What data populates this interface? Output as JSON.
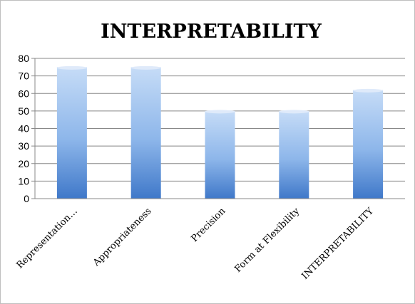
{
  "chart_data": {
    "type": "bar",
    "title": "INTERPRETABILITY",
    "xlabel": "",
    "ylabel": "",
    "categories": [
      "Representation…",
      "Appropriateness",
      "Precision",
      "Form at Flexibility",
      "INTERPRETABILITY"
    ],
    "values": [
      75,
      75,
      50,
      50,
      62
    ],
    "ylim": [
      0,
      80
    ],
    "yticks": [
      0,
      10,
      20,
      30,
      40,
      50,
      60,
      70,
      80
    ],
    "grid": true,
    "legend": "none",
    "colors": {
      "bar_top": "#c6dcf7",
      "bar_mid": "#8db6ea",
      "bar_bottom": "#3f78c9",
      "bar_cap": "#dfeafa",
      "grid": "#888888"
    }
  }
}
